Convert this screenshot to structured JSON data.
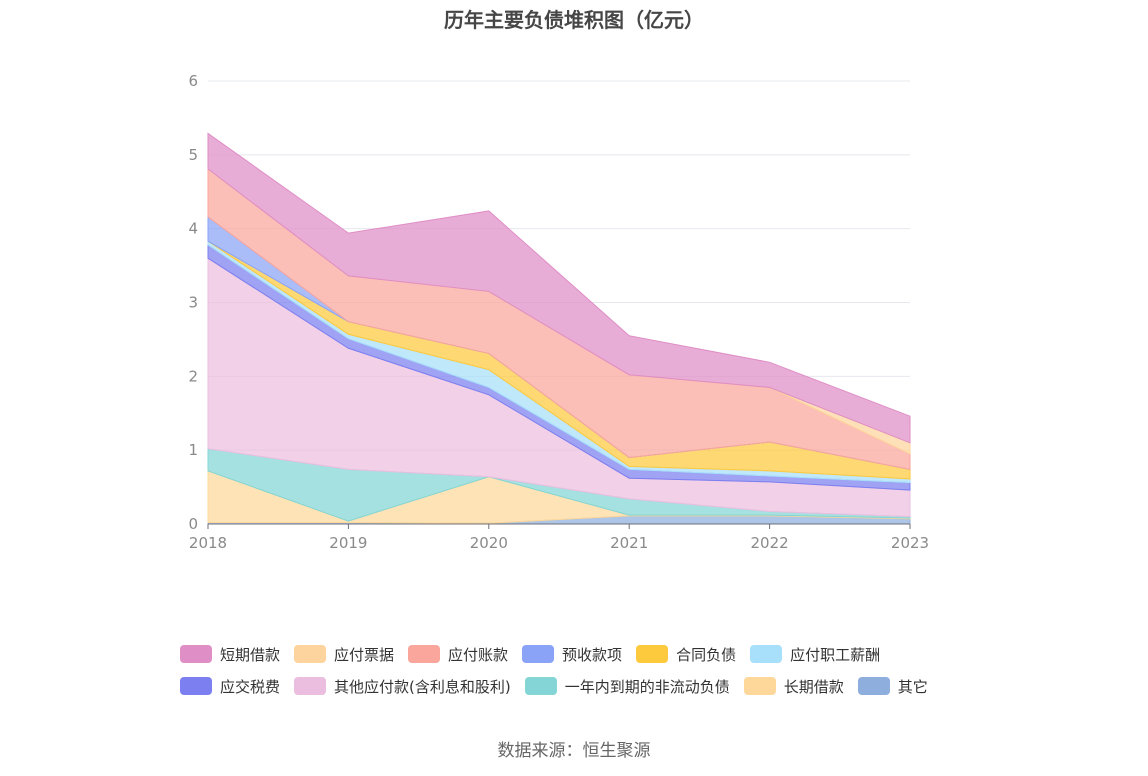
{
  "chart_data": {
    "type": "area",
    "stacked": true,
    "title": "历年主要负债堆积图（亿元）",
    "x": [
      "2018",
      "2019",
      "2020",
      "2021",
      "2022",
      "2023"
    ],
    "yticks": [
      "0",
      "1",
      "2",
      "3",
      "4",
      "5",
      "6"
    ],
    "ylim": [
      0,
      6
    ],
    "grid": true,
    "legend_position": "bottom",
    "series": [
      {
        "name": "其它",
        "color": "#8eaedd",
        "values": [
          0.02,
          0.02,
          0.01,
          0.11,
          0.11,
          0.07
        ]
      },
      {
        "name": "长期借款",
        "color": "#fdd89a",
        "values": [
          0.7,
          0.02,
          0.63,
          0.01,
          0.01,
          0.01
        ]
      },
      {
        "name": "一年内到期的非流动负债",
        "color": "#84d6d6",
        "values": [
          0.3,
          0.7,
          0.0,
          0.22,
          0.05,
          0.02
        ]
      },
      {
        "name": "其他应付款(含利息和股利)",
        "color": "#ebbedf",
        "values": [
          2.58,
          1.64,
          1.11,
          0.28,
          0.4,
          0.36
        ]
      },
      {
        "name": "应交税费",
        "color": "#7b7ff0",
        "values": [
          0.18,
          0.13,
          0.1,
          0.12,
          0.08,
          0.1
        ]
      },
      {
        "name": "应付职工薪酬",
        "color": "#a8dffa",
        "values": [
          0.05,
          0.06,
          0.24,
          0.04,
          0.07,
          0.05
        ]
      },
      {
        "name": "合同负债",
        "color": "#fdc93d",
        "values": [
          0.0,
          0.17,
          0.22,
          0.12,
          0.39,
          0.13
        ]
      },
      {
        "name": "预收款项",
        "color": "#8aa3f7",
        "values": [
          0.33,
          0.0,
          0.0,
          0.0,
          0.0,
          0.0
        ]
      },
      {
        "name": "应付账款",
        "color": "#faa69c",
        "values": [
          0.65,
          0.62,
          0.84,
          1.12,
          0.74,
          0.21
        ]
      },
      {
        "name": "应付票据",
        "color": "#fdd49d",
        "values": [
          0.0,
          0.0,
          0.0,
          0.0,
          0.0,
          0.15
        ]
      },
      {
        "name": "短期借款",
        "color": "#df8ec6",
        "values": [
          0.48,
          0.58,
          1.09,
          0.53,
          0.34,
          0.36
        ]
      }
    ]
  },
  "legend": {
    "row1": [
      "短期借款",
      "应付票据",
      "应付账款",
      "预收款项",
      "合同负债",
      "应付职工薪酬"
    ],
    "row2": [
      "应交税费",
      "其他应付款(含利息和股利)",
      "一年内到期的非流动负债",
      "长期借款",
      "其它"
    ]
  },
  "source": "数据来源：恒生聚源"
}
